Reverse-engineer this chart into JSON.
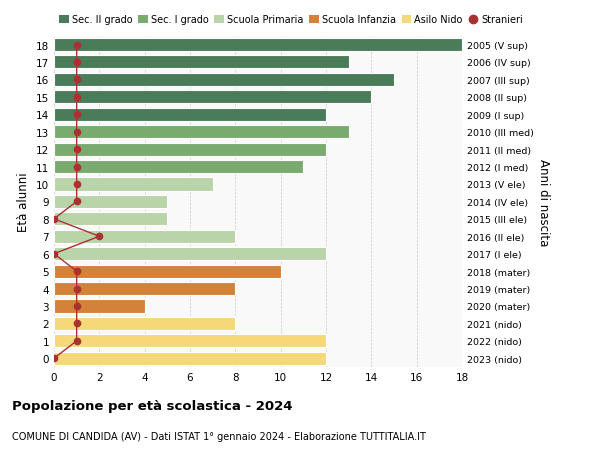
{
  "ages": [
    18,
    17,
    16,
    15,
    14,
    13,
    12,
    11,
    10,
    9,
    8,
    7,
    6,
    5,
    4,
    3,
    2,
    1,
    0
  ],
  "years": [
    "2005 (V sup)",
    "2006 (IV sup)",
    "2007 (III sup)",
    "2008 (II sup)",
    "2009 (I sup)",
    "2010 (III med)",
    "2011 (II med)",
    "2012 (I med)",
    "2013 (V ele)",
    "2014 (IV ele)",
    "2015 (III ele)",
    "2016 (II ele)",
    "2017 (I ele)",
    "2018 (mater)",
    "2019 (mater)",
    "2020 (mater)",
    "2021 (nido)",
    "2022 (nido)",
    "2023 (nido)"
  ],
  "bar_values": [
    18,
    13,
    15,
    14,
    12,
    13,
    12,
    11,
    7,
    5,
    5,
    8,
    12,
    10,
    8,
    4,
    8,
    12,
    12
  ],
  "stranieri": [
    1,
    1,
    1,
    1,
    1,
    1,
    1,
    1,
    1,
    1,
    0,
    2,
    0,
    1,
    1,
    1,
    1,
    1,
    0
  ],
  "bar_colors": [
    "#4a7c59",
    "#4a7c59",
    "#4a7c59",
    "#4a7c59",
    "#4a7c59",
    "#7aab6e",
    "#7aab6e",
    "#7aab6e",
    "#b8d4a8",
    "#b8d4a8",
    "#b8d4a8",
    "#b8d4a8",
    "#b8d4a8",
    "#d4823a",
    "#d4823a",
    "#d4823a",
    "#f5d87a",
    "#f5d87a",
    "#f5d87a"
  ],
  "legend_labels": [
    "Sec. II grado",
    "Sec. I grado",
    "Scuola Primaria",
    "Scuola Infanzia",
    "Asilo Nido",
    "Stranieri"
  ],
  "legend_colors": [
    "#4a7c59",
    "#7aab6e",
    "#b8d4a8",
    "#d4823a",
    "#f5d87a",
    "#a83232"
  ],
  "stranieri_color": "#a83232",
  "title": "Popolazione per età scolastica - 2024",
  "subtitle": "COMUNE DI CANDIDA (AV) - Dati ISTAT 1° gennaio 2024 - Elaborazione TUTTITALIA.IT",
  "ylabel_left": "Età alunni",
  "ylabel_right": "Anni di nascita",
  "xlim": [
    0,
    18
  ],
  "bg_color": "#f9f9f9",
  "grid_color": "#cccccc"
}
